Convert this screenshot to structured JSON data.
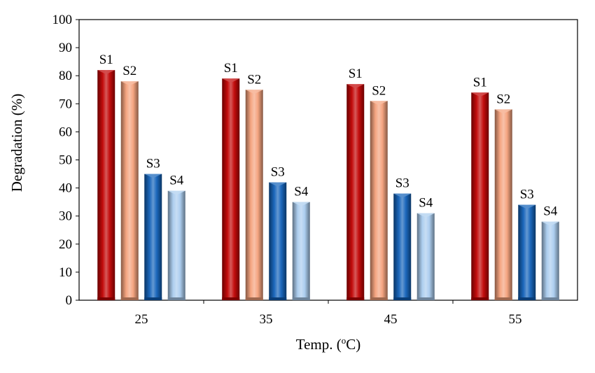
{
  "chart_data": {
    "type": "bar",
    "categories": [
      "25",
      "35",
      "45",
      "55"
    ],
    "series": [
      {
        "name": "S1",
        "values": [
          82,
          79,
          77,
          74
        ],
        "color": "#C00000"
      },
      {
        "name": "S2",
        "values": [
          78,
          75,
          71,
          68
        ],
        "color": "#F4A07A"
      },
      {
        "name": "S3",
        "values": [
          45,
          42,
          38,
          34
        ],
        "color": "#1060B8"
      },
      {
        "name": "S4",
        "values": [
          39,
          35,
          31,
          28
        ],
        "color": "#A9CBEE"
      }
    ],
    "title": "",
    "xlabel_main": "Temp. (",
    "xlabel_sup": "o",
    "xlabel_end": "C)",
    "ylabel": "Degradation (%)",
    "ylim": [
      0,
      100
    ],
    "yticks": [
      0,
      10,
      20,
      30,
      40,
      50,
      60,
      70,
      80,
      90,
      100
    ],
    "grid": false,
    "legend": "none; series names shown as labels above bars"
  }
}
